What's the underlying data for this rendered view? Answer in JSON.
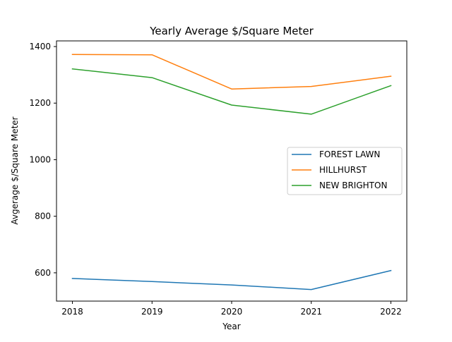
{
  "chart_data": {
    "type": "line",
    "title": "Yearly Average $/Square Meter",
    "xlabel": "Year",
    "ylabel": "Avgerage $/Square Meter",
    "x": [
      2018,
      2019,
      2020,
      2021,
      2022
    ],
    "xlim": [
      2017.8,
      2022.2
    ],
    "ylim": [
      500,
      1420
    ],
    "x_ticks": [
      "2018",
      "2019",
      "2020",
      "2021",
      "2022"
    ],
    "y_ticks": [
      600,
      800,
      1000,
      1200,
      1400
    ],
    "grid": false,
    "legend_position": "center-right",
    "series": [
      {
        "name": "FOREST LAWN",
        "color": "#1f77b4",
        "values": [
          580,
          569,
          557,
          541,
          608
        ]
      },
      {
        "name": "HILLHURST",
        "color": "#ff7f0e",
        "values": [
          1372,
          1371,
          1250,
          1259,
          1295
        ]
      },
      {
        "name": "NEW BRIGHTON",
        "color": "#2ca02c",
        "values": [
          1321,
          1290,
          1193,
          1161,
          1262
        ]
      }
    ]
  }
}
